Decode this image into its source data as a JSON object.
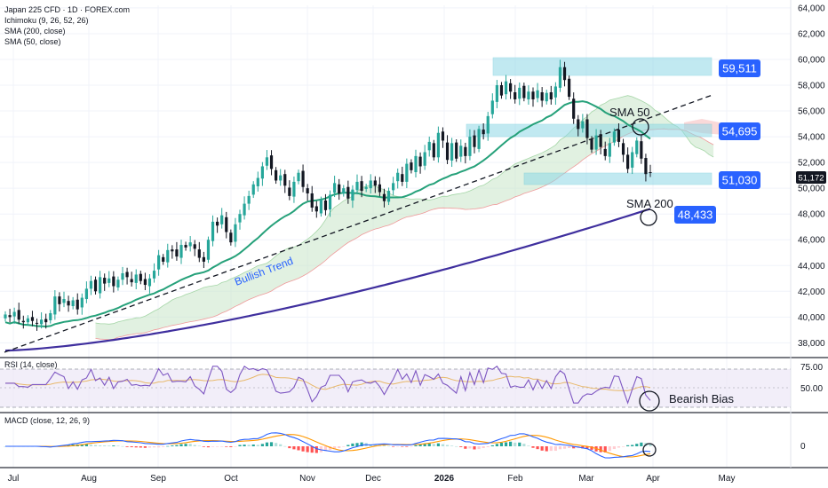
{
  "chart_data": {
    "type": "candlestick",
    "title": "Japan 225 CFD · 1D · FOREX.com",
    "indicators": [
      "Ichimoku (9, 26, 52, 26)",
      "SMA (200, close)",
      "SMA (50, close)"
    ],
    "x_labels": [
      "Jul",
      "Aug",
      "Sep",
      "Oct",
      "Nov",
      "Dec",
      "2026",
      "Feb",
      "Mar",
      "Apr",
      "May"
    ],
    "y_ticks": [
      "64,000",
      "62,000",
      "60,000",
      "58,000",
      "56,000",
      "54,000",
      "52,000",
      "50,000",
      "48,000",
      "46,000",
      "44,000",
      "42,000",
      "40,000",
      "38,000"
    ],
    "ylim": [
      37200,
      64200
    ],
    "current_price": "51,172",
    "closes": [
      40.2,
      40.0,
      40.4,
      39.8,
      39.6,
      39.9,
      39.7,
      39.5,
      39.8,
      39.6,
      40.3,
      41.6,
      41.0,
      41.4,
      40.9,
      41.3,
      40.6,
      41.5,
      42.2,
      42.8,
      42.0,
      43.1,
      42.6,
      43.0,
      42.4,
      42.9,
      43.4,
      43.1,
      42.7,
      43.3,
      42.8,
      42.5,
      43.0,
      43.6,
      44.8,
      44.3,
      45.2,
      45.1,
      44.7,
      45.6,
      45.4,
      45.8,
      45.3,
      44.6,
      44.3,
      46.0,
      47.4,
      47.1,
      47.9,
      46.6,
      45.8,
      47.2,
      48.0,
      48.8,
      49.4,
      50.3,
      50.8,
      51.7,
      52.4,
      51.5,
      50.6,
      51.0,
      50.2,
      49.4,
      50.5,
      51.2,
      50.1,
      49.6,
      48.5,
      48.2,
      49.1,
      48.3,
      49.5,
      50.4,
      49.6,
      50.0,
      49.2,
      49.9,
      50.5,
      49.8,
      50.1,
      50.6,
      50.2,
      49.7,
      49.0,
      49.8,
      50.4,
      51.2,
      50.5,
      51.9,
      51.4,
      52.5,
      51.7,
      52.8,
      53.6,
      52.4,
      54.3,
      53.7,
      52.2,
      53.5,
      52.3,
      53.3,
      52.5,
      54.0,
      53.2,
      54.6,
      54.2,
      55.6,
      56.8,
      58.0,
      57.2,
      58.3,
      57.5,
      56.9,
      57.8,
      57.0,
      57.5,
      56.9,
      57.6,
      56.8,
      57.4,
      56.9,
      57.9,
      59.4,
      58.4,
      57.1,
      55.4,
      54.6,
      55.2,
      53.9,
      53.0,
      54.1,
      53.2,
      52.5,
      53.5,
      54.4,
      53.6,
      52.6,
      51.5,
      52.8,
      53.7,
      52.3,
      51.1,
      51.2
    ],
    "annotations": {
      "sma50_label": "SMA 50",
      "sma200_label": "SMA 200",
      "trend_label": "Bullish Trend",
      "bias_label": "Bearish Bias"
    },
    "levels": [
      {
        "value": 59511,
        "label": "59,511"
      },
      {
        "value": 54695,
        "label": "54,695"
      },
      {
        "value": 51030,
        "label": "51,030"
      },
      {
        "value": 48433,
        "label": "48,433"
      }
    ],
    "rsi": {
      "title": "RSI (14, close)",
      "ticks": [
        "75.00",
        "50.00"
      ],
      "ylim": [
        15,
        85
      ]
    },
    "macd": {
      "title": "MACD (close, 12, 26, 9)",
      "ticks": [
        "0"
      ]
    },
    "colors": {
      "up": "#26a69a",
      "down": "#131722",
      "sma50": "#26a17a",
      "sma200": "#3f2f9e",
      "zone": "#8fd8e6",
      "badge": "#2962ff",
      "cloud_green": "#c8e6c9",
      "cloud_red": "#f8c9c9",
      "rsi_line": "#7e57c2",
      "macd_line": "#2962ff",
      "signal_line": "#ff9800"
    }
  }
}
